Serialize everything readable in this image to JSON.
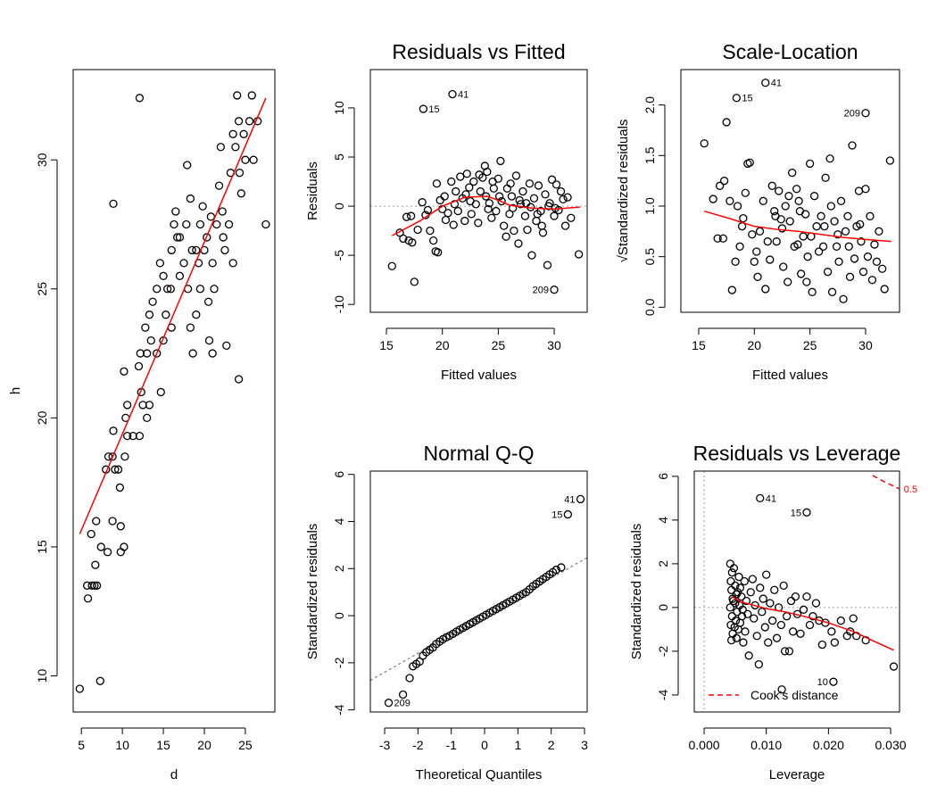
{
  "chart_data": [
    {
      "type": "scatter",
      "xlabel": "d",
      "ylabel": "h",
      "point_color": "#000000",
      "x": [
        4.8,
        7.3,
        5.8,
        5.7,
        6.3,
        6.6,
        6.9,
        6.7,
        7.4,
        6.2,
        6.8,
        8.2,
        8.8,
        9.8,
        9.8,
        10.2,
        8.0,
        8.3,
        8.8,
        9.1,
        9.5,
        8.9,
        9.7,
        10.3,
        10.4,
        10.6,
        10.6,
        11.3,
        12.1,
        12.3,
        12.0,
        12.2,
        10.2,
        8.9,
        12.1,
        12.5,
        13.0,
        13.3,
        13.0,
        13.5,
        12.8,
        13.3,
        13.7,
        14.2,
        14.6,
        14.2,
        14.7,
        15.0,
        15.3,
        15.5,
        15.9,
        16.0,
        16.3,
        16.5,
        16.7,
        17.0,
        17.5,
        17.8,
        17.9,
        18.3,
        18.0,
        18.3,
        18.6,
        19.0,
        19.3,
        19.5,
        19.8,
        20.0,
        20.3,
        20.5,
        20.6,
        21.0,
        21.2,
        21.5,
        21.8,
        22.0,
        22.2,
        22.5,
        22.7,
        23.0,
        23.2,
        23.5,
        23.8,
        24.0,
        24.2,
        24.3,
        24.2,
        24.5,
        24.8,
        25.0,
        25.5,
        25.8,
        26.0,
        26.5,
        27.5,
        17.0,
        16.0,
        15.0,
        19.0,
        20.8,
        21.0,
        22.3,
        23.5,
        18.5,
        19.5
      ],
      "values": [
        9.5,
        9.8,
        13.0,
        13.5,
        13.5,
        13.5,
        13.5,
        14.3,
        15.0,
        15.5,
        16.0,
        14.8,
        16.0,
        15.8,
        14.8,
        15.0,
        18.0,
        18.5,
        18.5,
        18.0,
        18.0,
        19.5,
        17.3,
        18.5,
        20.0,
        20.5,
        19.3,
        19.3,
        19.3,
        21.0,
        22.0,
        22.5,
        21.8,
        28.3,
        32.4,
        20.5,
        20.0,
        20.5,
        22.5,
        23.0,
        23.5,
        24.0,
        24.5,
        25.0,
        26.0,
        22.5,
        21.0,
        23.0,
        24.0,
        25.0,
        25.0,
        26.5,
        27.5,
        28.0,
        27.0,
        25.5,
        26.0,
        27.5,
        29.8,
        28.5,
        25.0,
        23.5,
        22.5,
        24.0,
        26.0,
        27.5,
        28.2,
        26.5,
        27.0,
        24.5,
        23.0,
        22.5,
        25.0,
        27.5,
        29.0,
        30.5,
        28.0,
        26.5,
        22.8,
        27.5,
        29.5,
        31.0,
        30.5,
        32.5,
        31.5,
        29.5,
        21.5,
        28.7,
        31.0,
        30.0,
        31.5,
        32.5,
        30.0,
        31.5,
        27.5,
        27.0,
        23.5,
        25.5,
        26.5,
        27.8,
        26.0,
        27.0,
        26.0,
        26.5,
        25.0
      ],
      "xlim": [
        4.0,
        28.6
      ],
      "ylim": [
        8.6,
        33.5
      ],
      "xticks": [
        5,
        10,
        15,
        20,
        25
      ],
      "yticks": [
        10,
        15,
        20,
        25,
        30
      ],
      "fit": {
        "x": [
          4.8,
          27.5
        ],
        "values": [
          15.5,
          32.4
        ],
        "color": "#ff0000"
      }
    },
    {
      "type": "scatter",
      "title": "Residuals vs Fitted",
      "xlabel": "Fitted values",
      "ylabel": "Residuals",
      "point_color": "#000000",
      "x": [
        15.5,
        16.2,
        16.5,
        16.8,
        17.0,
        17.2,
        17.3,
        17.5,
        17.8,
        18.2,
        18.5,
        18.7,
        18.9,
        19.2,
        19.4,
        19.6,
        19.5,
        19.8,
        20.0,
        20.3,
        20.5,
        20.8,
        21.0,
        21.2,
        21.4,
        21.6,
        21.8,
        22.0,
        22.2,
        22.4,
        22.6,
        22.8,
        23.0,
        23.2,
        23.4,
        23.6,
        23.8,
        24.0,
        24.2,
        24.4,
        24.6,
        24.8,
        25.0,
        25.2,
        25.3,
        25.5,
        25.7,
        25.8,
        26.0,
        26.2,
        26.4,
        26.6,
        26.8,
        27.0,
        27.2,
        27.4,
        27.6,
        27.8,
        28.0,
        28.2,
        28.4,
        28.6,
        28.8,
        29.0,
        29.2,
        29.4,
        29.6,
        29.8,
        30.0,
        30.2,
        30.4,
        30.6,
        30.8,
        31.0,
        31.2,
        31.5,
        32.2,
        22.5,
        23.9,
        24.1,
        25.1,
        26.3,
        27.5,
        28.5,
        29.5,
        27.9,
        26.9,
        24.5,
        23.3,
        22.1,
        21.1,
        20.2,
        26.1,
        28.9,
        30.1
      ],
      "values": [
        -6.1,
        -2.7,
        -3.3,
        -1.1,
        -3.5,
        -1.0,
        -3.7,
        -7.7,
        -2.4,
        0.4,
        -0.9,
        -0.4,
        -2.5,
        -3.5,
        -4.6,
        -4.7,
        2.3,
        0.6,
        -0.3,
        -1.4,
        -0.7,
        2.5,
        -1.9,
        1.5,
        -0.5,
        3.0,
        0.8,
        -1.5,
        3.3,
        1.9,
        -0.8,
        2.5,
        0.2,
        -1.7,
        1.5,
        2.9,
        4.1,
        3.5,
        0.3,
        -1.2,
        1.8,
        -0.5,
        2.8,
        4.6,
        0.5,
        -2.0,
        -3.1,
        1.8,
        -0.8,
        1.0,
        -2.5,
        3.1,
        -3.8,
        0.2,
        1.5,
        -1.0,
        -2.4,
        2.3,
        -5.0,
        0.8,
        -1.5,
        2.1,
        -0.5,
        -2.7,
        1.2,
        -6.0,
        0.3,
        2.7,
        -1.0,
        2.2,
        -0.4,
        1.5,
        0.7,
        -2.0,
        0.9,
        -1.2,
        -4.9,
        0.5,
        1.0,
        -0.3,
        1.0,
        -0.2,
        0.3,
        -0.8,
        0.0,
        -0.1,
        0.6,
        2.5,
        3.2,
        1.2,
        0.2,
        1.0,
        2.3,
        -2.0,
        -0.2
      ],
      "xlim": [
        13.56,
        32.95
      ],
      "ylim": [
        -10.8,
        13.9
      ],
      "xticks": [
        15,
        20,
        25,
        30
      ],
      "yticks": [
        -10,
        -5,
        0,
        5,
        10
      ],
      "hline": 0,
      "ref_color": "#a0a0a0",
      "smooth": {
        "x": [
          15.5,
          18,
          20,
          22,
          24,
          25,
          26,
          28,
          30,
          32.3
        ],
        "values": [
          -3.0,
          -1.5,
          0,
          0.9,
          1.0,
          0.6,
          0.1,
          -0.2,
          -0.3,
          -0.1
        ],
        "color": "#ff0000"
      },
      "annotations": [
        {
          "label": "41",
          "x": 20.9,
          "y": 11.4
        },
        {
          "label": "15",
          "x": 18.3,
          "y": 9.9
        },
        {
          "label": "209",
          "x": 30.0,
          "y": -8.5
        }
      ]
    },
    {
      "type": "scatter",
      "title": "Scale-Location",
      "xlabel": "Fitted values",
      "ylabel": "√Standardized residuals",
      "point_color": "#000000",
      "x": [
        15.5,
        16.3,
        16.7,
        16.9,
        17.2,
        17.3,
        17.5,
        17.8,
        18.0,
        18.3,
        18.5,
        18.7,
        18.9,
        19.2,
        19.4,
        19.6,
        19.8,
        20.0,
        20.3,
        20.5,
        20.8,
        21.0,
        21.2,
        21.4,
        21.6,
        21.8,
        22.0,
        22.2,
        22.4,
        22.6,
        22.8,
        23.0,
        23.2,
        23.4,
        23.6,
        23.8,
        24.0,
        24.2,
        24.4,
        24.6,
        24.8,
        25.0,
        25.2,
        25.4,
        25.6,
        25.8,
        26.0,
        26.2,
        26.4,
        26.6,
        26.8,
        27.0,
        27.2,
        27.4,
        27.6,
        27.8,
        28.0,
        28.2,
        28.4,
        28.6,
        28.8,
        29.0,
        29.2,
        29.4,
        29.6,
        29.8,
        30.0,
        30.2,
        30.4,
        30.6,
        30.8,
        31.0,
        31.2,
        31.5,
        31.7,
        32.2,
        22.5,
        23.9,
        24.1,
        25.1,
        26.3,
        27.5,
        28.5,
        29.5,
        20.2,
        19.0,
        21.9,
        26.9,
        24.7,
        23.1
      ],
      "values": [
        1.62,
        1.07,
        0.68,
        1.2,
        0.68,
        1.25,
        1.83,
        1.05,
        0.17,
        0.45,
        1.0,
        0.6,
        0.8,
        1.13,
        1.42,
        1.43,
        0.72,
        0.45,
        0.3,
        0.75,
        1.05,
        0.18,
        0.65,
        0.47,
        1.2,
        0.95,
        0.65,
        1.15,
        0.87,
        0.4,
        1.0,
        0.25,
        0.85,
        1.33,
        0.6,
        1.17,
        1.05,
        0.33,
        0.7,
        0.92,
        0.5,
        1.42,
        0.15,
        1.1,
        0.8,
        0.55,
        0.9,
        0.6,
        1.28,
        0.35,
        1.47,
        0.15,
        0.85,
        0.6,
        0.45,
        1.05,
        0.08,
        0.75,
        0.9,
        0.3,
        1.6,
        0.48,
        0.8,
        1.15,
        0.65,
        0.35,
        1.17,
        0.5,
        0.9,
        0.27,
        0.62,
        0.45,
        0.75,
        0.38,
        0.18,
        1.45,
        0.78,
        0.62,
        0.95,
        0.7,
        0.8,
        0.72,
        0.6,
        0.82,
        0.55,
        0.88,
        0.9,
        1.0,
        0.25,
        1.1
      ],
      "xlim": [
        13.4,
        33.05
      ],
      "ylim": [
        -0.05,
        2.35
      ],
      "xticks": [
        15,
        20,
        25,
        30
      ],
      "yticks": [
        {
          "value": 0,
          "label": "0.0"
        },
        0.5,
        {
          "value": 1,
          "label": "1.0"
        },
        1.5,
        {
          "value": 2,
          "label": "2.0"
        }
      ],
      "smooth": {
        "x": [
          15.5,
          18,
          20,
          22,
          24,
          26,
          28,
          30,
          32.3
        ],
        "values": [
          0.95,
          0.87,
          0.8,
          0.77,
          0.75,
          0.72,
          0.69,
          0.67,
          0.65
        ],
        "color": "#ff0000"
      },
      "annotations": [
        {
          "label": "41",
          "x": 21.0,
          "y": 2.22
        },
        {
          "label": "15",
          "x": 18.4,
          "y": 2.07
        },
        {
          "label": "209",
          "x": 30.0,
          "y": 1.92
        }
      ]
    },
    {
      "type": "scatter",
      "title": "Normal Q-Q",
      "xlabel": "Theoretical Quantiles",
      "ylabel": "Standardized residuals",
      "point_color": "#000000",
      "x": [
        -2.45,
        -2.25,
        -2.15,
        -2.05,
        -1.95,
        -1.85,
        -1.75,
        -1.65,
        -1.55,
        -1.45,
        -1.35,
        -1.25,
        -1.15,
        -1.05,
        -0.95,
        -0.85,
        -0.75,
        -0.65,
        -0.55,
        -0.45,
        -0.35,
        -0.25,
        -0.15,
        -0.05,
        0.05,
        0.15,
        0.25,
        0.35,
        0.45,
        0.55,
        0.65,
        0.75,
        0.85,
        0.95,
        1.05,
        1.15,
        1.25,
        1.35,
        1.45,
        1.55,
        1.65,
        1.75,
        1.85,
        1.95,
        2.05,
        2.15,
        2.3
      ],
      "values": [
        -3.35,
        -2.65,
        -2.15,
        -2.05,
        -1.95,
        -1.7,
        -1.55,
        -1.45,
        -1.35,
        -1.2,
        -1.1,
        -1.0,
        -0.92,
        -0.85,
        -0.77,
        -0.68,
        -0.6,
        -0.52,
        -0.44,
        -0.36,
        -0.28,
        -0.2,
        -0.12,
        -0.04,
        0.04,
        0.12,
        0.2,
        0.28,
        0.36,
        0.44,
        0.52,
        0.6,
        0.68,
        0.76,
        0.84,
        0.92,
        1.0,
        1.12,
        1.25,
        1.35,
        1.45,
        1.55,
        1.65,
        1.75,
        1.85,
        1.95,
        2.05
      ],
      "xlim": [
        -3.43,
        3.08
      ],
      "ylim": [
        -4.09,
        6.14
      ],
      "xticks": [
        -3,
        -2,
        -1,
        0,
        1,
        2,
        3
      ],
      "yticks": [
        -4,
        -2,
        0,
        2,
        4,
        6
      ],
      "abline": {
        "intercept": 0,
        "slope": 0.8,
        "color": "#808080"
      },
      "annotations": [
        {
          "label": "41",
          "x": 2.88,
          "y": 4.95
        },
        {
          "label": "15",
          "x": 2.5,
          "y": 4.3
        },
        {
          "label": "209",
          "x": -2.88,
          "y": -3.7
        }
      ]
    },
    {
      "type": "scatter",
      "title": "Residuals vs Leverage",
      "xlabel": "Leverage",
      "ylabel": "Standardized residuals",
      "point_color": "#000000",
      "x": [
        0.0042,
        0.0045,
        0.0043,
        0.0044,
        0.0046,
        0.0042,
        0.0045,
        0.0043,
        0.0046,
        0.0044,
        0.0048,
        0.005,
        0.0052,
        0.005,
        0.0053,
        0.0051,
        0.0055,
        0.0052,
        0.0056,
        0.0058,
        0.006,
        0.0062,
        0.0058,
        0.0063,
        0.0065,
        0.0068,
        0.007,
        0.0066,
        0.0072,
        0.0075,
        0.0078,
        0.008,
        0.0082,
        0.0085,
        0.0088,
        0.009,
        0.0093,
        0.0095,
        0.0098,
        0.01,
        0.0103,
        0.0106,
        0.011,
        0.0113,
        0.0117,
        0.012,
        0.0124,
        0.0128,
        0.013,
        0.0133,
        0.0137,
        0.014,
        0.0143,
        0.0147,
        0.015,
        0.0155,
        0.016,
        0.0165,
        0.017,
        0.0175,
        0.018,
        0.0185,
        0.019,
        0.0195,
        0.0205,
        0.021,
        0.022,
        0.023,
        0.0235,
        0.024,
        0.0245,
        0.026,
        0.0305,
        0.0047,
        0.0054,
        0.0061,
        0.0049,
        0.0057,
        0.0125
      ],
      "values": [
        2.0,
        1.6,
        1.2,
        0.8,
        0.4,
        0.0,
        -0.4,
        -0.8,
        -1.2,
        -1.5,
        1.8,
        1.0,
        0.6,
        0.2,
        -0.2,
        -0.6,
        -1.0,
        -1.4,
        1.4,
        0.9,
        0.5,
        -0.1,
        -0.7,
        -1.6,
        1.2,
        0.3,
        -0.3,
        -1.1,
        -2.2,
        0.7,
        1.3,
        -0.5,
        0.1,
        -1.3,
        -2.6,
        0.9,
        -0.2,
        0.4,
        -0.9,
        1.5,
        -1.6,
        0.2,
        -0.6,
        0.8,
        -1.4,
        0.0,
        -0.8,
        1.0,
        -2.0,
        -0.4,
        -2.0,
        0.3,
        -1.1,
        0.5,
        -0.3,
        -1.2,
        -0.1,
        0.5,
        -0.8,
        -0.4,
        0.2,
        -0.6,
        -1.7,
        -0.7,
        -1.1,
        -1.6,
        -0.6,
        -1.3,
        -1.1,
        -0.5,
        -1.3,
        -1.5,
        -2.7,
        0.3,
        0.7,
        -0.4,
        -0.9,
        0.1,
        -3.75
      ],
      "xlim": [
        -0.00158,
        0.03143
      ],
      "ylim": [
        -4.78,
        6.24
      ],
      "xticks": [
        {
          "value": 0,
          "label": "0.000"
        },
        {
          "value": 0.01,
          "label": "0.010"
        },
        {
          "value": 0.02,
          "label": "0.020"
        },
        {
          "value": 0.03,
          "label": "0.030"
        }
      ],
      "yticks": [
        -4,
        -2,
        0,
        2,
        4,
        6
      ],
      "hline": 0,
      "vline": 0,
      "ref_color": "#a0a0a0",
      "smooth": {
        "x": [
          0.0045,
          0.006,
          0.008,
          0.01,
          0.013,
          0.016,
          0.02,
          0.024,
          0.027,
          0.0305
        ],
        "values": [
          0.5,
          0.25,
          0.1,
          -0.05,
          -0.2,
          -0.4,
          -0.7,
          -1.1,
          -1.5,
          -1.95
        ],
        "color": "#ff0000"
      },
      "cooks": {
        "label": "0.5",
        "x": [
          0.0271,
          0.029,
          0.0314
        ],
        "values": [
          6.04,
          5.75,
          5.43
        ],
        "color": "#ff0000"
      },
      "legend": {
        "label": "Cook's distance",
        "position": "bottomleft"
      },
      "annotations": [
        {
          "label": "41",
          "x": 0.009,
          "y": 5.0
        },
        {
          "label": "15",
          "x": 0.0165,
          "y": 4.35
        },
        {
          "label": "10",
          "x": 0.0208,
          "y": -3.4
        }
      ]
    }
  ]
}
